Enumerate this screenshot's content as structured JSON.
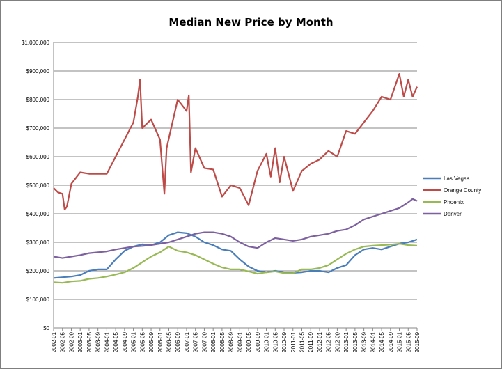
{
  "chart_data": {
    "type": "line",
    "title": "Median New Price by Month",
    "xlabel": "",
    "ylabel": "",
    "ylim": [
      0,
      1000000
    ],
    "yticks": [
      0,
      100000,
      200000,
      300000,
      400000,
      500000,
      600000,
      700000,
      800000,
      900000,
      1000000
    ],
    "ytick_labels": [
      "$0",
      "$100,000",
      "$200,000",
      "$300,000",
      "$400,000",
      "$500,000",
      "$600,000",
      "$700,000",
      "$800,000",
      "$900,000",
      "$1,000,000"
    ],
    "x_start": "2002-01",
    "x_end": "2015-09",
    "xtick_labels": [
      "2002-01",
      "2002-05",
      "2002-09",
      "2003-01",
      "2003-05",
      "2003-09",
      "2004-01",
      "2004-05",
      "2004-09",
      "2005-01",
      "2005-05",
      "2005-09",
      "2006-01",
      "2006-05",
      "2006-09",
      "2007-01",
      "2007-05",
      "2007-09",
      "2008-01",
      "2008-05",
      "2008-09",
      "2009-01",
      "2009-05",
      "2009-09",
      "2010-01",
      "2010-05",
      "2010-09",
      "2011-01",
      "2011-05",
      "2011-09",
      "2012-01",
      "2012-05",
      "2012-09",
      "2013-01",
      "2013-05",
      "2013-09",
      "2014-01",
      "2014-05",
      "2014-09",
      "2015-01",
      "2015-05",
      "2015-09"
    ],
    "grid": "horizontal",
    "legend_position": "right",
    "series": [
      {
        "name": "Las Vegas",
        "color": "#4a7ebb",
        "points": [
          [
            "2002-01",
            175000
          ],
          [
            "2002-09",
            180000
          ],
          [
            "2003-01",
            185000
          ],
          [
            "2003-05",
            200000
          ],
          [
            "2003-09",
            205000
          ],
          [
            "2004-01",
            205000
          ],
          [
            "2004-05",
            240000
          ],
          [
            "2004-09",
            270000
          ],
          [
            "2005-01",
            285000
          ],
          [
            "2005-05",
            293000
          ],
          [
            "2005-09",
            290000
          ],
          [
            "2006-01",
            300000
          ],
          [
            "2006-05",
            325000
          ],
          [
            "2006-09",
            335000
          ],
          [
            "2007-01",
            332000
          ],
          [
            "2007-05",
            320000
          ],
          [
            "2007-09",
            300000
          ],
          [
            "2008-01",
            290000
          ],
          [
            "2008-05",
            275000
          ],
          [
            "2008-09",
            270000
          ],
          [
            "2009-01",
            240000
          ],
          [
            "2009-05",
            215000
          ],
          [
            "2009-09",
            200000
          ],
          [
            "2010-01",
            195000
          ],
          [
            "2010-05",
            200000
          ],
          [
            "2010-09",
            195000
          ],
          [
            "2011-01",
            193000
          ],
          [
            "2011-05",
            195000
          ],
          [
            "2011-09",
            200000
          ],
          [
            "2012-01",
            200000
          ],
          [
            "2012-05",
            195000
          ],
          [
            "2012-09",
            210000
          ],
          [
            "2013-01",
            220000
          ],
          [
            "2013-05",
            255000
          ],
          [
            "2013-09",
            275000
          ],
          [
            "2014-01",
            280000
          ],
          [
            "2014-05",
            275000
          ],
          [
            "2014-09",
            285000
          ],
          [
            "2015-01",
            295000
          ],
          [
            "2015-05",
            300000
          ],
          [
            "2015-09",
            310000
          ]
        ]
      },
      {
        "name": "Orange County",
        "color": "#be4b48",
        "points": [
          [
            "2002-01",
            490000
          ],
          [
            "2002-03",
            475000
          ],
          [
            "2002-05",
            470000
          ],
          [
            "2002-06",
            415000
          ],
          [
            "2002-07",
            425000
          ],
          [
            "2002-09",
            505000
          ],
          [
            "2003-01",
            545000
          ],
          [
            "2003-05",
            540000
          ],
          [
            "2003-09",
            540000
          ],
          [
            "2004-01",
            540000
          ],
          [
            "2004-05",
            600000
          ],
          [
            "2004-09",
            660000
          ],
          [
            "2005-01",
            720000
          ],
          [
            "2005-03",
            810000
          ],
          [
            "2005-04",
            870000
          ],
          [
            "2005-05",
            700000
          ],
          [
            "2005-09",
            730000
          ],
          [
            "2006-01",
            660000
          ],
          [
            "2006-03",
            470000
          ],
          [
            "2006-04",
            630000
          ],
          [
            "2006-09",
            800000
          ],
          [
            "2007-01",
            760000
          ],
          [
            "2007-02",
            815000
          ],
          [
            "2007-03",
            545000
          ],
          [
            "2007-05",
            630000
          ],
          [
            "2007-09",
            560000
          ],
          [
            "2008-01",
            555000
          ],
          [
            "2008-05",
            460000
          ],
          [
            "2008-09",
            500000
          ],
          [
            "2009-01",
            490000
          ],
          [
            "2009-05",
            430000
          ],
          [
            "2009-09",
            550000
          ],
          [
            "2010-01",
            610000
          ],
          [
            "2010-03",
            530000
          ],
          [
            "2010-05",
            630000
          ],
          [
            "2010-07",
            510000
          ],
          [
            "2010-09",
            600000
          ],
          [
            "2011-01",
            480000
          ],
          [
            "2011-05",
            550000
          ],
          [
            "2011-09",
            575000
          ],
          [
            "2012-01",
            590000
          ],
          [
            "2012-05",
            620000
          ],
          [
            "2012-09",
            600000
          ],
          [
            "2013-01",
            690000
          ],
          [
            "2013-05",
            680000
          ],
          [
            "2013-09",
            720000
          ],
          [
            "2014-01",
            760000
          ],
          [
            "2014-05",
            810000
          ],
          [
            "2014-09",
            800000
          ],
          [
            "2015-01",
            890000
          ],
          [
            "2015-03",
            810000
          ],
          [
            "2015-05",
            870000
          ],
          [
            "2015-07",
            810000
          ],
          [
            "2015-09",
            845000
          ]
        ]
      },
      {
        "name": "Phoenix",
        "color": "#98b954",
        "points": [
          [
            "2002-01",
            160000
          ],
          [
            "2002-05",
            158000
          ],
          [
            "2002-09",
            163000
          ],
          [
            "2003-01",
            165000
          ],
          [
            "2003-05",
            172000
          ],
          [
            "2003-09",
            175000
          ],
          [
            "2004-01",
            180000
          ],
          [
            "2004-05",
            187000
          ],
          [
            "2004-09",
            195000
          ],
          [
            "2005-01",
            210000
          ],
          [
            "2005-05",
            230000
          ],
          [
            "2005-09",
            250000
          ],
          [
            "2006-01",
            265000
          ],
          [
            "2006-05",
            285000
          ],
          [
            "2006-09",
            270000
          ],
          [
            "2007-01",
            265000
          ],
          [
            "2007-05",
            255000
          ],
          [
            "2007-09",
            240000
          ],
          [
            "2008-01",
            225000
          ],
          [
            "2008-05",
            212000
          ],
          [
            "2008-09",
            205000
          ],
          [
            "2009-01",
            205000
          ],
          [
            "2009-05",
            198000
          ],
          [
            "2009-09",
            190000
          ],
          [
            "2010-01",
            195000
          ],
          [
            "2010-05",
            198000
          ],
          [
            "2010-09",
            192000
          ],
          [
            "2011-01",
            192000
          ],
          [
            "2011-05",
            205000
          ],
          [
            "2011-09",
            205000
          ],
          [
            "2012-01",
            210000
          ],
          [
            "2012-05",
            220000
          ],
          [
            "2012-09",
            240000
          ],
          [
            "2013-01",
            260000
          ],
          [
            "2013-05",
            275000
          ],
          [
            "2013-09",
            285000
          ],
          [
            "2014-01",
            288000
          ],
          [
            "2014-05",
            290000
          ],
          [
            "2014-09",
            292000
          ],
          [
            "2015-01",
            295000
          ],
          [
            "2015-05",
            290000
          ],
          [
            "2015-09",
            288000
          ]
        ]
      },
      {
        "name": "Denver",
        "color": "#7d60a0",
        "points": [
          [
            "2002-01",
            250000
          ],
          [
            "2002-05",
            245000
          ],
          [
            "2002-09",
            250000
          ],
          [
            "2003-01",
            255000
          ],
          [
            "2003-05",
            262000
          ],
          [
            "2003-09",
            265000
          ],
          [
            "2004-01",
            268000
          ],
          [
            "2004-05",
            275000
          ],
          [
            "2004-09",
            280000
          ],
          [
            "2005-01",
            285000
          ],
          [
            "2005-05",
            287000
          ],
          [
            "2005-09",
            290000
          ],
          [
            "2006-01",
            295000
          ],
          [
            "2006-05",
            300000
          ],
          [
            "2006-09",
            310000
          ],
          [
            "2007-01",
            320000
          ],
          [
            "2007-05",
            330000
          ],
          [
            "2007-09",
            335000
          ],
          [
            "2008-01",
            335000
          ],
          [
            "2008-05",
            330000
          ],
          [
            "2008-09",
            320000
          ],
          [
            "2009-01",
            300000
          ],
          [
            "2009-05",
            285000
          ],
          [
            "2009-09",
            280000
          ],
          [
            "2010-01",
            300000
          ],
          [
            "2010-05",
            315000
          ],
          [
            "2010-09",
            310000
          ],
          [
            "2011-01",
            305000
          ],
          [
            "2011-05",
            310000
          ],
          [
            "2011-09",
            320000
          ],
          [
            "2012-01",
            325000
          ],
          [
            "2012-05",
            330000
          ],
          [
            "2012-09",
            340000
          ],
          [
            "2013-01",
            345000
          ],
          [
            "2013-05",
            360000
          ],
          [
            "2013-09",
            380000
          ],
          [
            "2014-01",
            390000
          ],
          [
            "2014-05",
            400000
          ],
          [
            "2014-09",
            410000
          ],
          [
            "2015-01",
            420000
          ],
          [
            "2015-05",
            440000
          ],
          [
            "2015-07",
            452000
          ],
          [
            "2015-09",
            445000
          ]
        ]
      }
    ]
  }
}
